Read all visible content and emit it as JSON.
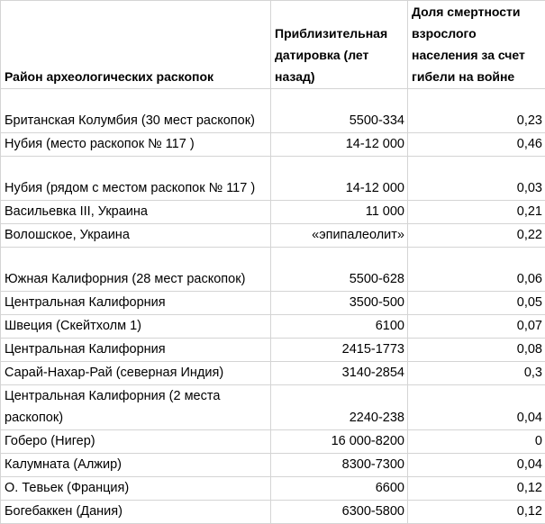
{
  "headers": [
    "Район археологических раскопок",
    "Приблизительная датировка (лет назад)",
    "Доля смертности взрослого населения за счет гибели на войне"
  ],
  "rows": [
    {
      "site": "Британская Колумбия (30 мест раскопок)",
      "dating": "5500-334",
      "share": "0,23",
      "tall": true
    },
    {
      "site": "Нубия (место раскопок № 117 )",
      "dating": "14-12 000",
      "share": "0,46"
    },
    {
      "site": "Нубия (рядом с местом раскопок № 117 )",
      "dating": "14-12 000",
      "share": "0,03",
      "tall": true
    },
    {
      "site": "Васильевка III, Украина",
      "dating": "11 000",
      "share": "0,21"
    },
    {
      "site": "Волошское, Украина",
      "dating": "«эпипалеолит»",
      "share": "0,22"
    },
    {
      "site": "Южная Калифорния (28 мест раскопок)",
      "dating": "5500-628",
      "share": "0,06",
      "tall": true
    },
    {
      "site": "Центральная Калифорния",
      "dating": "3500-500",
      "share": "0,05"
    },
    {
      "site": "Швеция (Скейтхолм 1)",
      "dating": "6100",
      "share": "0,07"
    },
    {
      "site": "Центральная Калифорния",
      "dating": "2415-1773",
      "share": "0,08"
    },
    {
      "site": "Сарай-Нахар-Рай (северная Индия)",
      "dating": "3140-2854",
      "share": "0,3"
    },
    {
      "site": "Центральная Калифорния (2 места раскопок)",
      "dating": "2240-238",
      "share": "0,04",
      "tall": true
    },
    {
      "site": "Гоберо (Нигер)",
      "dating": "16 000-8200",
      "share": "0"
    },
    {
      "site": "Калумната (Алжир)",
      "dating": "8300-7300",
      "share": "0,04"
    },
    {
      "site": "О. Тевьек (Франция)",
      "dating": "6600",
      "share": "0,12"
    },
    {
      "site": "Богебаккен (Дания)",
      "dating": "6300-5800",
      "share": "0,12"
    }
  ]
}
